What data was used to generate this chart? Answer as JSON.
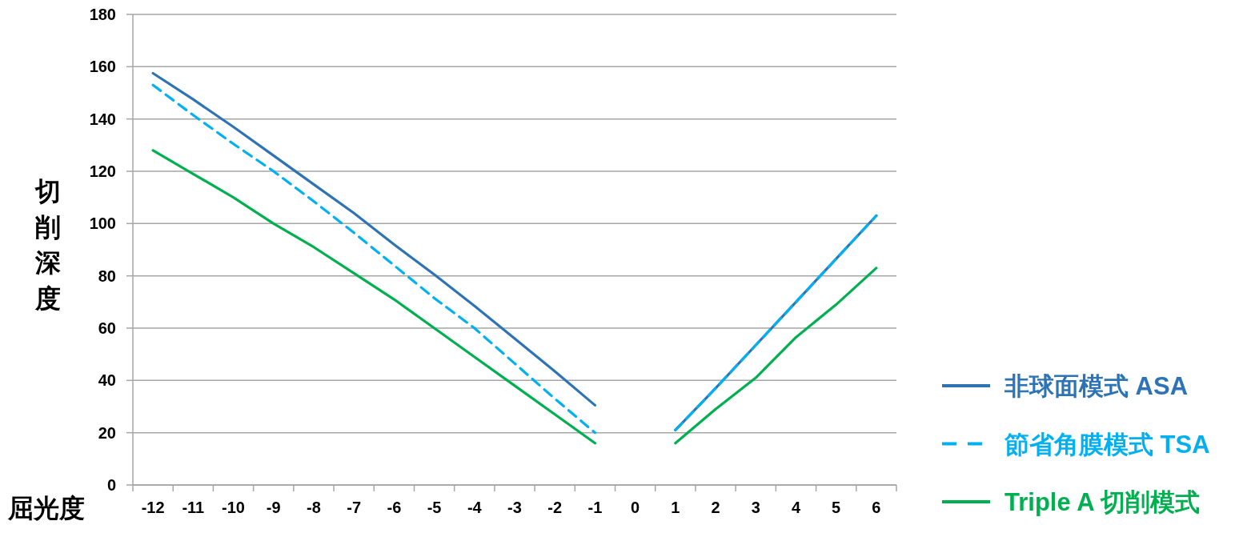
{
  "chart_data": {
    "type": "line",
    "xlabel": "屈光度",
    "ylabel": "切削深度",
    "categories": [
      "-12",
      "-11",
      "-10",
      "-9",
      "-8",
      "-7",
      "-6",
      "-5",
      "-4",
      "-3",
      "-2",
      "-1",
      "0",
      "1",
      "2",
      "3",
      "4",
      "5",
      "6"
    ],
    "series": [
      {
        "name": "非球面模式 ASA",
        "color": "#2E74B5",
        "line_style": "solid",
        "values": [
          157.5,
          147.5,
          137,
          126,
          115,
          104,
          92,
          80.5,
          68.5,
          56,
          43.5,
          30.5,
          null,
          21,
          37,
          53.5,
          70,
          86.5,
          103
        ]
      },
      {
        "name": "節省角膜模式 TSA",
        "color": "#00B0F0",
        "line_style": "dashed",
        "values": [
          153,
          141.5,
          130.5,
          120,
          108.5,
          96.5,
          84,
          71.5,
          60,
          46.5,
          33,
          20,
          null,
          21,
          37,
          53.5,
          70,
          86.5,
          103
        ]
      },
      {
        "name": "Triple A 切削模式",
        "color": "#00B050",
        "line_style": "solid",
        "values": [
          128,
          119,
          110,
          100,
          91,
          81,
          71,
          60,
          49,
          38,
          27,
          16,
          null,
          16,
          29,
          41,
          56.5,
          69,
          83
        ]
      }
    ],
    "ylim": [
      0,
      180
    ],
    "yticks": [
      0,
      20,
      40,
      60,
      80,
      100,
      120,
      140,
      160,
      180
    ],
    "grid": "y",
    "legend": "right",
    "marker": "none"
  }
}
